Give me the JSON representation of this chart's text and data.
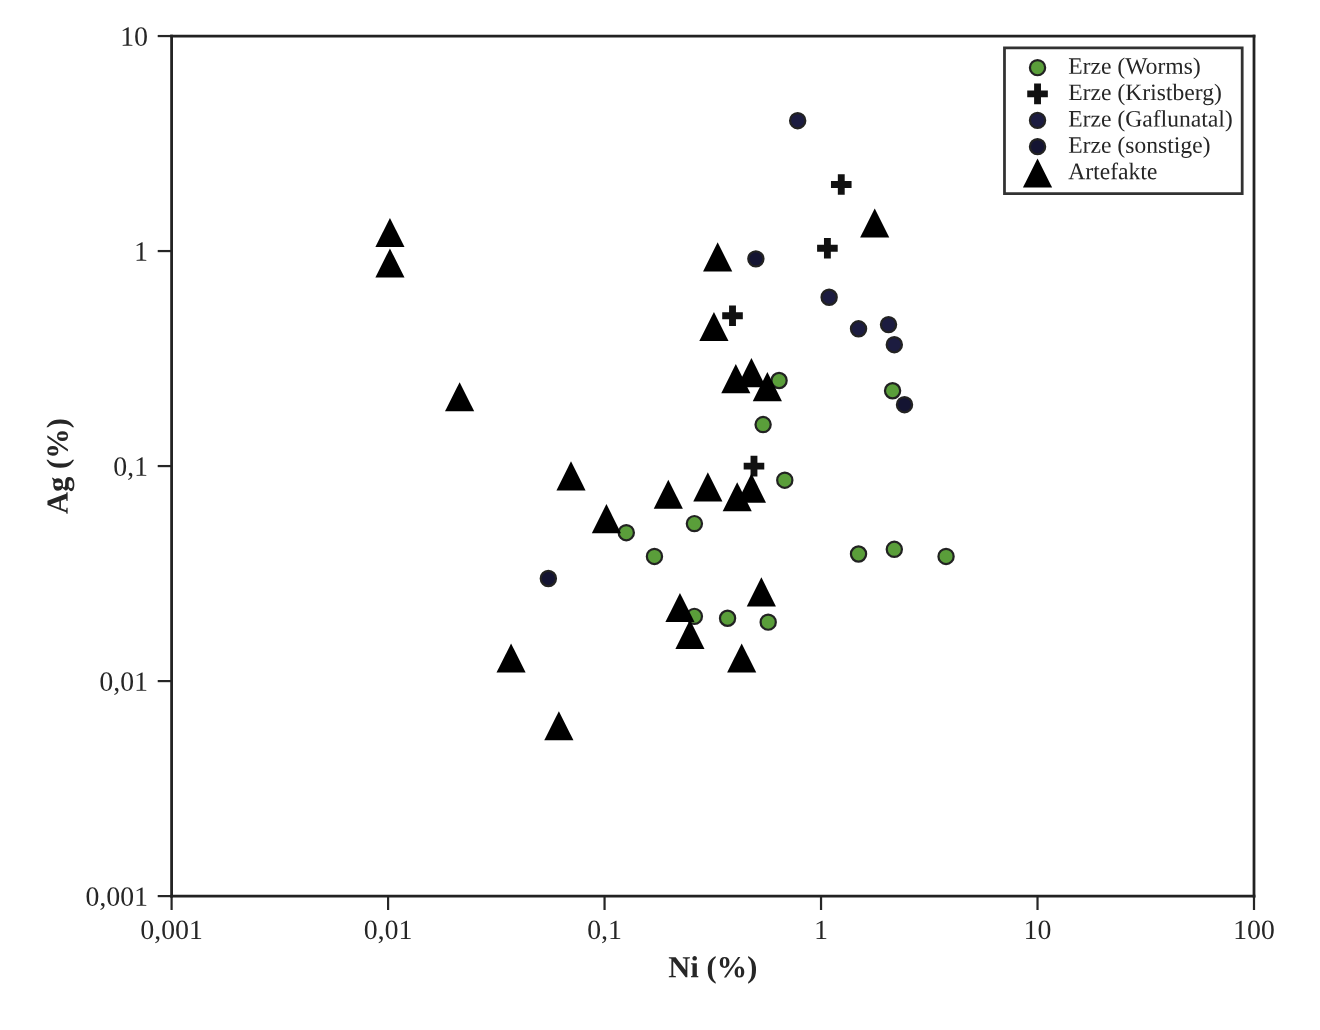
{
  "chart_data": {
    "type": "scatter",
    "xlabel": "Ni (%)",
    "ylabel": "Ag (%)",
    "log": "xy",
    "grid": false,
    "legend": "top right",
    "xlim": [
      0.001,
      100
    ],
    "ylim": [
      0.001,
      10
    ],
    "xticks": [
      {
        "value": 0.001,
        "label": "0,001"
      },
      {
        "value": 0.01,
        "label": "0,01"
      },
      {
        "value": 0.1,
        "label": "0,1"
      },
      1,
      10,
      100
    ],
    "yticks": [
      {
        "value": 0.001,
        "label": "0,001"
      },
      {
        "value": 0.01,
        "label": "0,01"
      },
      {
        "value": 0.1,
        "label": "0,1"
      },
      1,
      10
    ],
    "series": [
      {
        "name": "Erze (Worms)",
        "color": "#5a9e3a",
        "marker": "circle",
        "x": [
          0.64,
          0.54,
          0.68,
          0.26,
          0.126,
          0.17,
          1.49,
          2.18,
          3.78,
          2.14,
          0.26,
          0.37,
          0.57
        ],
        "values": [
          0.25,
          0.156,
          0.086,
          0.054,
          0.049,
          0.038,
          0.039,
          0.041,
          0.038,
          0.224,
          0.02,
          0.0196,
          0.0188
        ]
      },
      {
        "name": "Erze (Kristberg)",
        "color": "#111111",
        "marker": "cross",
        "x": [
          0.39,
          0.49,
          1.07,
          1.24
        ],
        "values": [
          0.5,
          0.1,
          1.03,
          2.04
        ]
      },
      {
        "name": "Erze (Gaflunatal)",
        "color": "#1c1c40",
        "marker": "circle",
        "x": [
          0.78,
          1.09,
          1.49,
          2.05,
          2.18
        ],
        "values": [
          4.04,
          0.61,
          0.435,
          0.455,
          0.367
        ]
      },
      {
        "name": "Erze (sonstige)",
        "color": "#141432",
        "marker": "circle",
        "x": [
          0.5,
          2.43,
          0.055
        ],
        "values": [
          0.92,
          0.193,
          0.03
        ]
      },
      {
        "name": "Artefakte",
        "color": "#000000",
        "marker": "triangle",
        "x": [
          0.0102,
          0.0102,
          0.0214,
          0.07,
          0.333,
          0.32,
          0.404,
          0.477,
          0.565,
          1.77,
          0.197,
          0.3,
          0.41,
          0.477,
          0.102,
          0.53,
          0.223,
          0.248,
          0.037,
          0.43,
          0.0615
        ],
        "values": [
          1.22,
          0.88,
          0.21,
          0.09,
          0.94,
          0.446,
          0.255,
          0.272,
          0.234,
          1.35,
          0.074,
          0.08,
          0.072,
          0.079,
          0.057,
          0.026,
          0.022,
          0.0165,
          0.0128,
          0.0128,
          0.0062
        ]
      }
    ]
  }
}
